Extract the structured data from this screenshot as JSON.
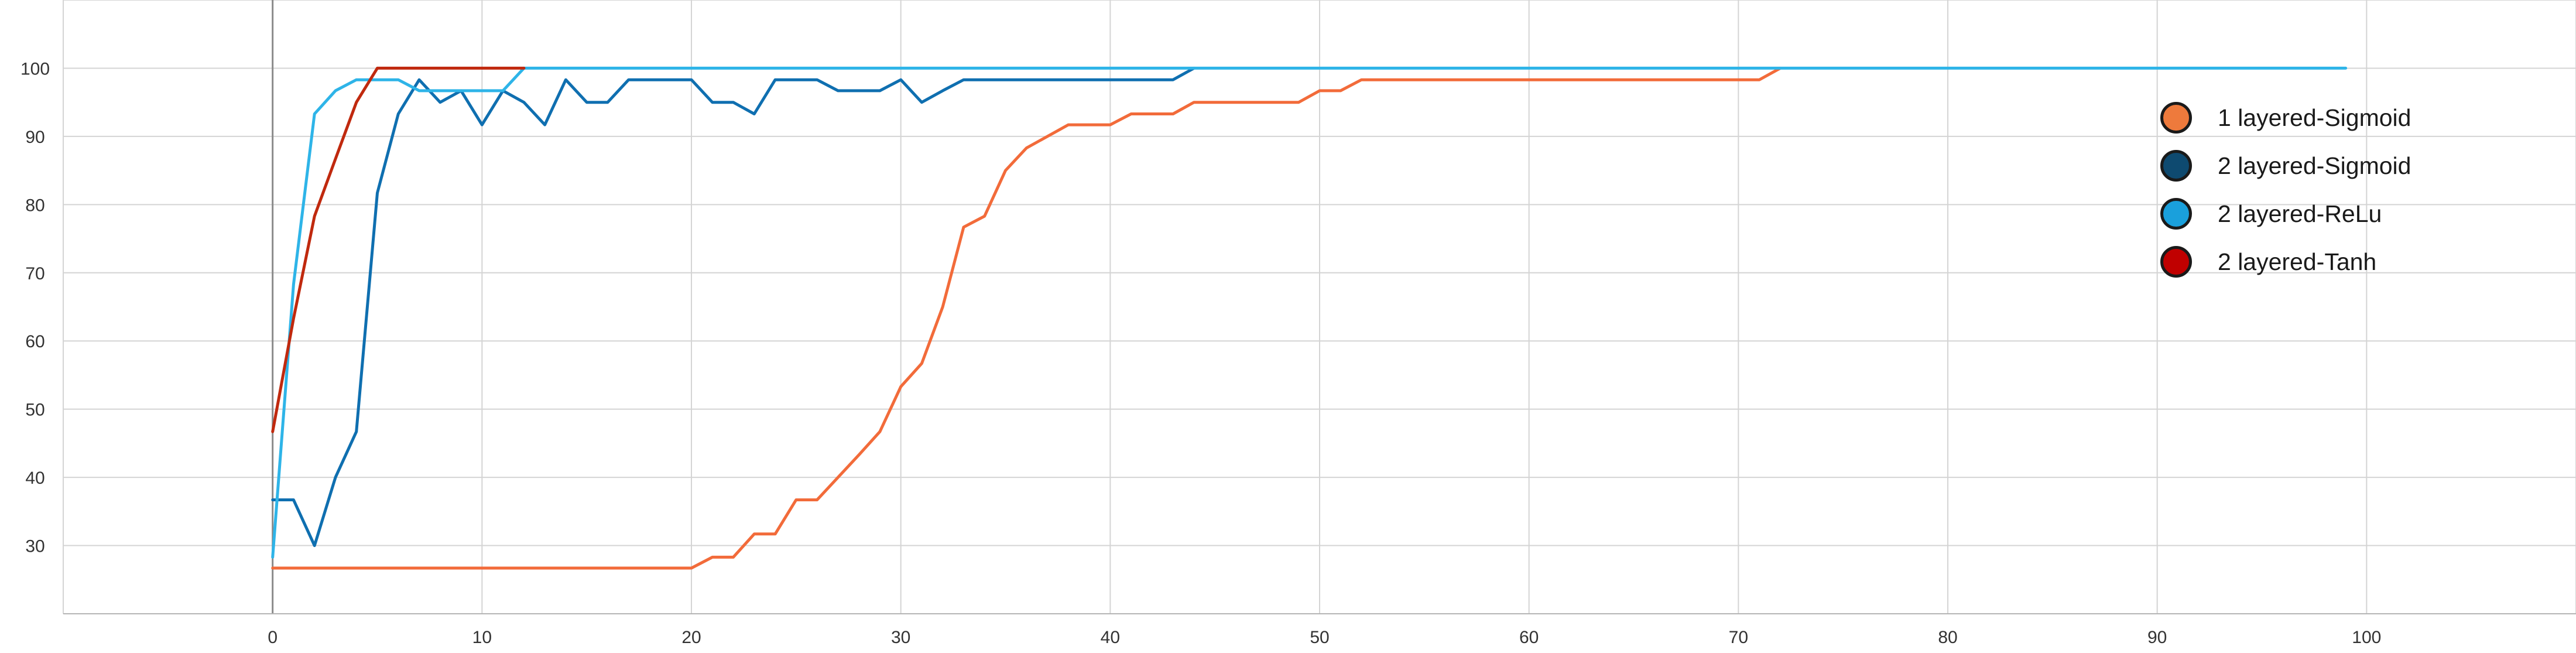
{
  "chart_data": {
    "type": "line",
    "title": "",
    "xlabel": "",
    "ylabel": "",
    "xlim": [
      -10,
      110
    ],
    "ylim": [
      20,
      110
    ],
    "xticks": [
      0,
      10,
      20,
      30,
      40,
      50,
      60,
      70,
      80,
      90,
      100
    ],
    "yticks": [
      30,
      40,
      50,
      60,
      70,
      80,
      90,
      100
    ],
    "grid": true,
    "legend_position": "top-right",
    "series": [
      {
        "name": "1 layered-Sigmoid",
        "color": "#f26b3a",
        "marker_color": "#ee7a3c",
        "x": [
          0,
          1,
          2,
          3,
          4,
          5,
          6,
          7,
          8,
          9,
          10,
          11,
          12,
          13,
          14,
          15,
          16,
          17,
          18,
          19,
          20,
          21,
          22,
          23,
          24,
          25,
          26,
          27,
          28,
          29,
          30,
          31,
          32,
          33,
          34,
          35,
          36,
          37,
          38,
          39,
          40,
          41,
          42,
          43,
          44,
          45,
          46,
          47,
          48,
          49,
          50,
          51,
          52,
          53,
          54,
          55,
          56,
          57,
          58,
          59,
          60,
          61,
          62,
          63,
          64,
          65,
          66,
          67,
          68,
          69,
          70,
          71,
          72
        ],
        "y": [
          26.7,
          26.7,
          26.7,
          26.7,
          26.7,
          26.7,
          26.7,
          26.7,
          26.7,
          26.7,
          26.7,
          26.7,
          26.7,
          26.7,
          26.7,
          26.7,
          26.7,
          26.7,
          26.7,
          26.7,
          26.7,
          28.3,
          28.3,
          31.7,
          31.7,
          36.7,
          36.7,
          40,
          43.3,
          46.7,
          53.3,
          56.7,
          65,
          76.7,
          78.3,
          85,
          88.3,
          90,
          91.7,
          91.7,
          91.7,
          93.3,
          93.3,
          93.3,
          95,
          95,
          95,
          95,
          95,
          95,
          96.7,
          96.7,
          98.3,
          98.3,
          98.3,
          98.3,
          98.3,
          98.3,
          98.3,
          98.3,
          98.3,
          98.3,
          98.3,
          98.3,
          98.3,
          98.3,
          98.3,
          98.3,
          98.3,
          98.3,
          98.3,
          98.3,
          100
        ]
      },
      {
        "name": "2 layered-Sigmoid",
        "color": "#0f6fb0",
        "marker_color": "#0e4a70",
        "x": [
          0,
          1,
          2,
          3,
          4,
          5,
          6,
          7,
          8,
          9,
          10,
          11,
          12,
          13,
          14,
          15,
          16,
          17,
          18,
          19,
          20,
          21,
          22,
          23,
          24,
          25,
          26,
          27,
          28,
          29,
          30,
          31,
          32,
          33,
          34,
          35,
          36,
          37,
          38,
          39,
          40,
          41,
          42,
          43,
          44
        ],
        "y": [
          36.7,
          36.7,
          30,
          40,
          46.7,
          81.7,
          93.3,
          98.3,
          95,
          96.7,
          91.7,
          96.7,
          95,
          91.7,
          98.3,
          95,
          95,
          98.3,
          98.3,
          98.3,
          98.3,
          95,
          95,
          93.3,
          98.3,
          98.3,
          98.3,
          96.7,
          96.7,
          96.7,
          98.3,
          95,
          96.7,
          98.3,
          98.3,
          98.3,
          98.3,
          98.3,
          98.3,
          98.3,
          98.3,
          98.3,
          98.3,
          98.3,
          100
        ]
      },
      {
        "name": "2 layered-ReLu",
        "color": "#2eb4e8",
        "marker_color": "#1aa0dc",
        "x": [
          0,
          1,
          2,
          3,
          4,
          5,
          6,
          7,
          8,
          9,
          10,
          11,
          12,
          99
        ],
        "y": [
          28.3,
          68.3,
          93.3,
          96.7,
          98.3,
          98.3,
          98.3,
          96.7,
          96.7,
          96.7,
          96.7,
          96.7,
          100,
          100
        ]
      },
      {
        "name": "2 layered-Tanh",
        "color": "#c0290e",
        "marker_color": "#c00000",
        "x": [
          0,
          1,
          2,
          3,
          4,
          5,
          12
        ],
        "y": [
          46.7,
          63.3,
          78.3,
          86.7,
          95,
          100,
          100
        ]
      }
    ]
  }
}
